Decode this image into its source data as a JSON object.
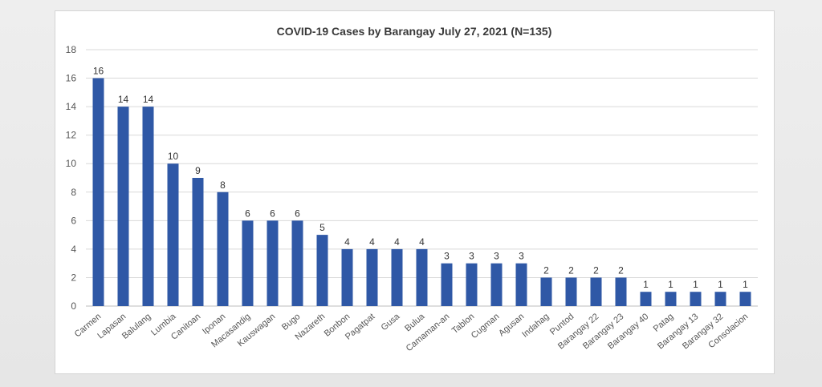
{
  "chart_data": {
    "type": "bar",
    "title": "COVID-19 Cases by Barangay July 27, 2021 (N=135)",
    "xlabel": "",
    "ylabel": "",
    "ylim": [
      0,
      18
    ],
    "yticks": [
      0,
      2,
      4,
      6,
      8,
      10,
      12,
      14,
      16,
      18
    ],
    "grid": true,
    "legend": "none",
    "bar_color": "#2f58a6",
    "categories": [
      "Carmen",
      "Lapasan",
      "Balulang",
      "Lumbia",
      "Canitoan",
      "Iponan",
      "Macasandig",
      "Kauswagan",
      "Bugo",
      "Nazareth",
      "Bonbon",
      "Pagatpat",
      "Gusa",
      "Bulua",
      "Camaman-an",
      "Tablon",
      "Cugman",
      "Agusan",
      "Indahag",
      "Puntod",
      "Barangay 22",
      "Barangay 23",
      "Barangay 40",
      "Patag",
      "Barangay 13",
      "Barangay 32",
      "Consolacion"
    ],
    "values": [
      16,
      14,
      14,
      10,
      9,
      8,
      6,
      6,
      6,
      5,
      4,
      4,
      4,
      4,
      3,
      3,
      3,
      3,
      2,
      2,
      2,
      2,
      1,
      1,
      1,
      1,
      1
    ]
  }
}
